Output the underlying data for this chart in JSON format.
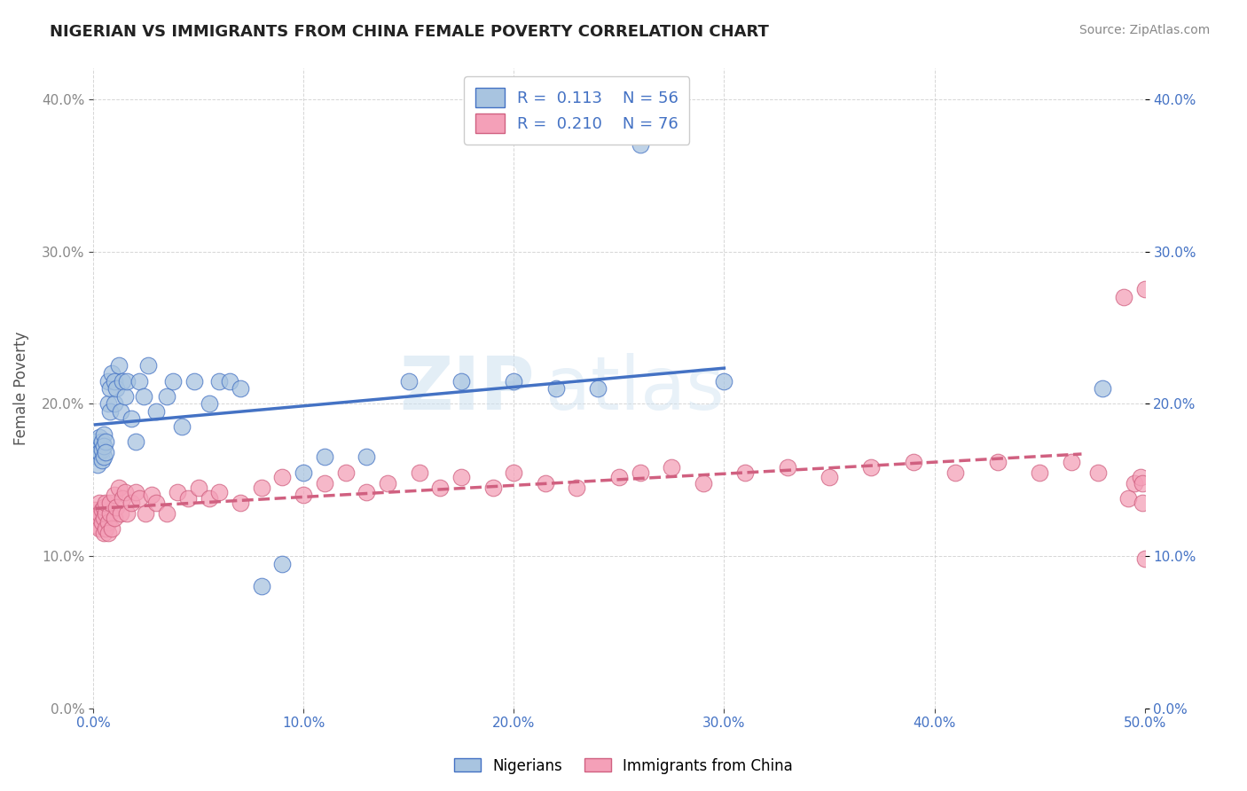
{
  "title": "NIGERIAN VS IMMIGRANTS FROM CHINA FEMALE POVERTY CORRELATION CHART",
  "source": "Source: ZipAtlas.com",
  "ylabel": "Female Poverty",
  "xlim": [
    0.0,
    0.5
  ],
  "ylim": [
    0.0,
    0.42
  ],
  "watermark_part1": "ZIP",
  "watermark_part2": "atlas",
  "color_nigerian": "#a8c4e0",
  "color_china": "#f4a0b8",
  "color_line_nigerian": "#4472c4",
  "color_line_china": "#d06080",
  "color_text_blue": "#4472c4",
  "nigerian_x": [
    0.001,
    0.001,
    0.002,
    0.002,
    0.002,
    0.003,
    0.003,
    0.003,
    0.004,
    0.004,
    0.004,
    0.005,
    0.005,
    0.005,
    0.006,
    0.006,
    0.007,
    0.007,
    0.008,
    0.008,
    0.009,
    0.01,
    0.01,
    0.011,
    0.012,
    0.013,
    0.014,
    0.015,
    0.016,
    0.018,
    0.02,
    0.022,
    0.024,
    0.026,
    0.03,
    0.035,
    0.038,
    0.042,
    0.048,
    0.055,
    0.06,
    0.065,
    0.07,
    0.08,
    0.09,
    0.1,
    0.11,
    0.13,
    0.15,
    0.175,
    0.2,
    0.22,
    0.24,
    0.26,
    0.3,
    0.48
  ],
  "nigerian_y": [
    0.17,
    0.175,
    0.165,
    0.17,
    0.16,
    0.172,
    0.168,
    0.178,
    0.163,
    0.17,
    0.175,
    0.165,
    0.18,
    0.172,
    0.175,
    0.168,
    0.2,
    0.215,
    0.195,
    0.21,
    0.22,
    0.215,
    0.2,
    0.21,
    0.225,
    0.195,
    0.215,
    0.205,
    0.215,
    0.19,
    0.175,
    0.215,
    0.205,
    0.225,
    0.195,
    0.205,
    0.215,
    0.185,
    0.215,
    0.2,
    0.215,
    0.215,
    0.21,
    0.08,
    0.095,
    0.155,
    0.165,
    0.165,
    0.215,
    0.215,
    0.215,
    0.21,
    0.21,
    0.37,
    0.215,
    0.21
  ],
  "china_x": [
    0.001,
    0.002,
    0.002,
    0.003,
    0.003,
    0.003,
    0.004,
    0.004,
    0.005,
    0.005,
    0.005,
    0.006,
    0.006,
    0.006,
    0.007,
    0.007,
    0.008,
    0.008,
    0.009,
    0.01,
    0.01,
    0.011,
    0.012,
    0.013,
    0.014,
    0.015,
    0.016,
    0.018,
    0.02,
    0.022,
    0.025,
    0.028,
    0.03,
    0.035,
    0.04,
    0.045,
    0.05,
    0.055,
    0.06,
    0.07,
    0.08,
    0.09,
    0.1,
    0.11,
    0.12,
    0.13,
    0.14,
    0.155,
    0.165,
    0.175,
    0.19,
    0.2,
    0.215,
    0.23,
    0.25,
    0.26,
    0.275,
    0.29,
    0.31,
    0.33,
    0.35,
    0.37,
    0.39,
    0.41,
    0.43,
    0.45,
    0.465,
    0.478,
    0.49,
    0.492,
    0.495,
    0.498,
    0.499,
    0.499,
    0.5,
    0.5
  ],
  "china_y": [
    0.13,
    0.12,
    0.125,
    0.118,
    0.128,
    0.135,
    0.122,
    0.13,
    0.115,
    0.125,
    0.132,
    0.118,
    0.128,
    0.135,
    0.122,
    0.115,
    0.128,
    0.135,
    0.118,
    0.125,
    0.14,
    0.132,
    0.145,
    0.128,
    0.138,
    0.142,
    0.128,
    0.135,
    0.142,
    0.138,
    0.128,
    0.14,
    0.135,
    0.128,
    0.142,
    0.138,
    0.145,
    0.138,
    0.142,
    0.135,
    0.145,
    0.152,
    0.14,
    0.148,
    0.155,
    0.142,
    0.148,
    0.155,
    0.145,
    0.152,
    0.145,
    0.155,
    0.148,
    0.145,
    0.152,
    0.155,
    0.158,
    0.148,
    0.155,
    0.158,
    0.152,
    0.158,
    0.162,
    0.155,
    0.162,
    0.155,
    0.162,
    0.155,
    0.27,
    0.138,
    0.148,
    0.152,
    0.135,
    0.148,
    0.098,
    0.275
  ]
}
